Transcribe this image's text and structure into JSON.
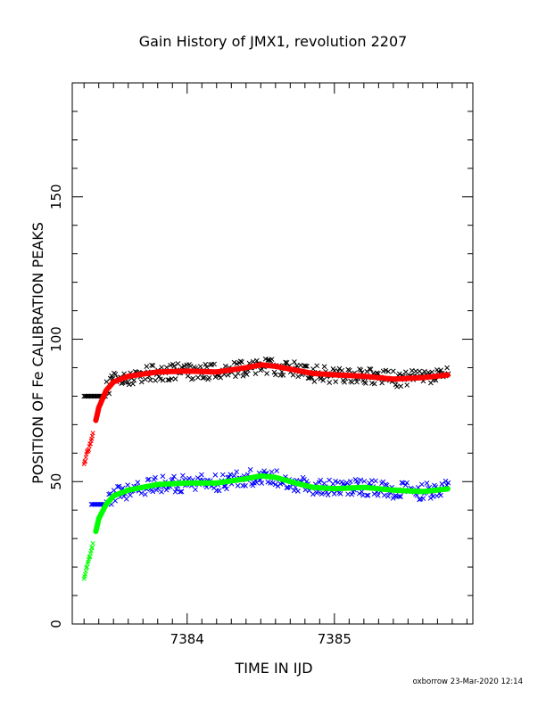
{
  "chart_data": {
    "type": "scatter",
    "title": "Gain History of JMX1, revolution 2207",
    "xlabel": "TIME IN IJD",
    "ylabel": "POSITION OF Fe CALIBRATION PEAKS",
    "footer": "oxborrow 23-Mar-2020 12:14",
    "xlim": [
      7383.22,
      7385.94
    ],
    "ylim": [
      0,
      190
    ],
    "x_ticks": [
      7384,
      7385
    ],
    "y_ticks": [
      0,
      50,
      100,
      150
    ],
    "grid": false,
    "legend": "none",
    "series": [
      {
        "marker": "x",
        "color": "#000000",
        "x_range": [
          7383.3,
          7385.78
        ],
        "y_range": [
          80,
          97
        ],
        "typical": 88
      },
      {
        "marker": "line",
        "color": "#ff0000",
        "x": [
          7383.3,
          7383.32,
          7383.34,
          7383.36,
          7383.4,
          7383.45,
          7383.5,
          7383.6,
          7383.8,
          7384.0,
          7384.2,
          7384.4,
          7384.5,
          7384.6,
          7384.7,
          7384.85,
          7385.0,
          7385.2,
          7385.4,
          7385.6,
          7385.78
        ],
        "y": [
          56,
          60,
          63,
          67,
          76,
          82,
          85,
          87,
          88.5,
          88.8,
          88.5,
          90,
          91,
          90.5,
          89.5,
          88,
          87.5,
          87,
          86,
          86.5,
          87.5
        ]
      },
      {
        "marker": "x",
        "color": "#0000ff",
        "x_range": [
          7383.35,
          7385.78
        ],
        "y_range": [
          42,
          55
        ],
        "typical": 49
      },
      {
        "marker": "line",
        "color": "#00ff00",
        "x": [
          7383.3,
          7383.32,
          7383.34,
          7383.36,
          7383.4,
          7383.45,
          7383.5,
          7383.6,
          7383.8,
          7384.0,
          7384.2,
          7384.4,
          7384.5,
          7384.6,
          7384.7,
          7384.85,
          7385.0,
          7385.2,
          7385.4,
          7385.6,
          7385.78
        ],
        "y": [
          16,
          20,
          24,
          28,
          37,
          42,
          45,
          47,
          49,
          49.5,
          49.5,
          51,
          52,
          51.5,
          50,
          48,
          47.5,
          48,
          47,
          46.5,
          47.5
        ]
      }
    ]
  }
}
